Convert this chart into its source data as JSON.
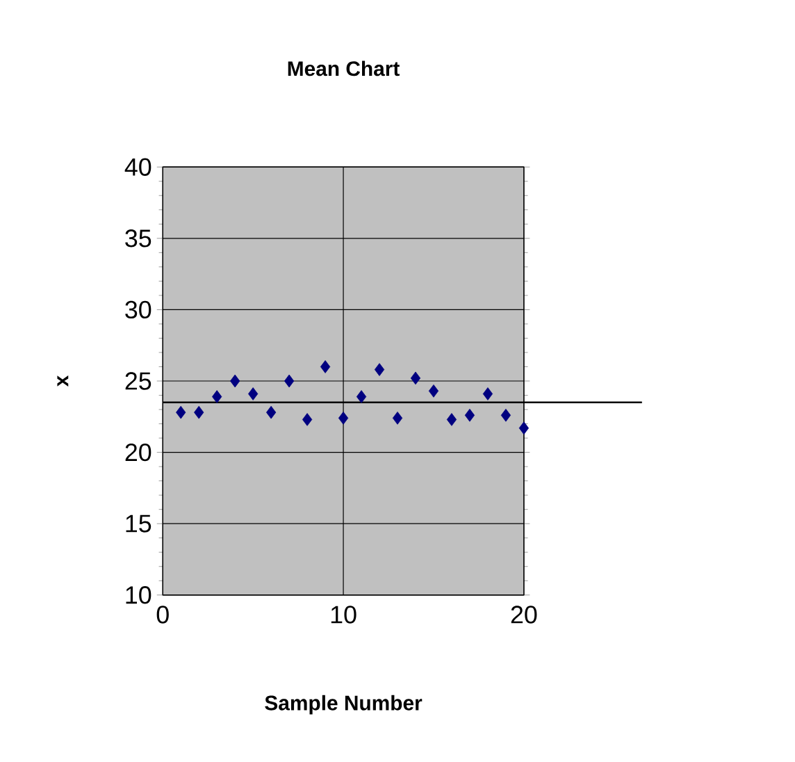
{
  "chart_data": {
    "type": "scatter",
    "title": "Mean Chart",
    "xlabel": "Sample Number",
    "ylabel": "x",
    "x": [
      1,
      2,
      3,
      4,
      5,
      6,
      7,
      8,
      9,
      10,
      11,
      12,
      13,
      14,
      15,
      16,
      17,
      18,
      19,
      20
    ],
    "values": [
      22.8,
      22.8,
      23.9,
      25.0,
      24.1,
      22.8,
      25.0,
      22.3,
      26.0,
      22.4,
      23.9,
      25.8,
      22.4,
      25.2,
      24.3,
      22.3,
      22.6,
      24.1,
      22.6,
      21.7
    ],
    "color": "#000080",
    "marker": "diamond",
    "xlim": [
      0,
      20
    ],
    "ylim": [
      10,
      40
    ],
    "xticks": [
      0,
      10,
      20
    ],
    "yticks": [
      10,
      15,
      20,
      25,
      30,
      35,
      40
    ],
    "grid": true,
    "ref_lines": [
      {
        "axis": "y",
        "value": 23.5,
        "color": "#000000"
      }
    ]
  }
}
